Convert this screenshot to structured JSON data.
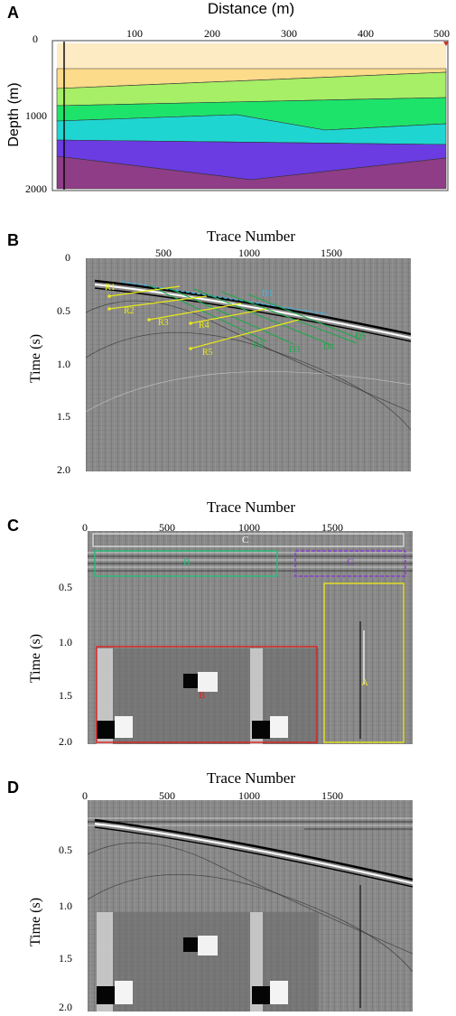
{
  "panels": {
    "A": {
      "label": "A",
      "xtitle": "Distance (m)",
      "ytitle": "Depth (m)",
      "xticks": [
        "100",
        "200",
        "300",
        "400",
        "500"
      ],
      "yticks": [
        "0",
        "1000",
        "2000"
      ],
      "layer_colors": [
        "#fdebc4",
        "#fcdb8a",
        "#a6ef67",
        "#1ee36a",
        "#1fd5d2",
        "#6a3ce2",
        "#8f3d86"
      ]
    },
    "B": {
      "label": "B",
      "xtitle": "Trace Number",
      "ytitle": "Time (s)",
      "xticks": [
        "500",
        "1000",
        "1500"
      ],
      "yticks": [
        "0",
        "0.5",
        "1.0",
        "1.5",
        "2.0"
      ],
      "reflections": [
        "R1",
        "R2",
        "R3",
        "R4",
        "R5"
      ],
      "diffractions": [
        "D1",
        "D2",
        "D3",
        "D4",
        "D5"
      ],
      "colors": {
        "reflection": "#e8e81a",
        "diffraction_top": "#38b6e8",
        "diffraction": "#1fa84b"
      }
    },
    "C": {
      "label": "C",
      "xtitle": "Trace Number",
      "ytitle": "Time (s)",
      "xticks": [
        "0",
        "500",
        "1000",
        "1500"
      ],
      "yticks": [
        "0.5",
        "1.0",
        "1.5",
        "2.0"
      ],
      "boxes": {
        "top": {
          "label": "C",
          "color": "#d9d9d9"
        },
        "green": {
          "label": "B",
          "color": "#22c07a"
        },
        "purple": {
          "label": "C",
          "color": "#8a3bd6"
        },
        "yellow": {
          "label": "A",
          "color": "#e6e21c"
        },
        "red": {
          "label": "B",
          "color": "#e0201f"
        }
      }
    },
    "D": {
      "label": "D",
      "xtitle": "Trace Number",
      "ytitle": "Time (s)",
      "xticks": [
        "0",
        "500",
        "1000",
        "1500"
      ],
      "yticks": [
        "0.5",
        "1.0",
        "1.5",
        "2.0"
      ]
    }
  }
}
